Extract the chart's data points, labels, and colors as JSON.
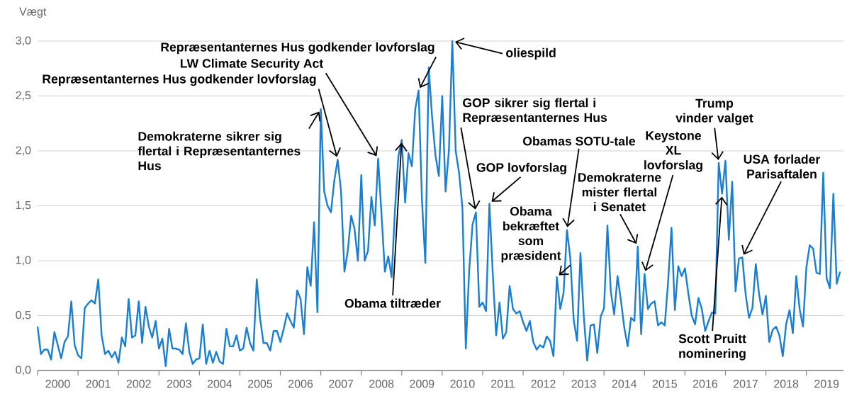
{
  "chart_data": {
    "type": "line",
    "ylabel": "Vægt",
    "color": "#1a7fd4",
    "x": [
      "2000-01",
      "2000-02",
      "2000-03",
      "2000-04",
      "2000-05",
      "2000-06",
      "2000-07",
      "2000-08",
      "2000-09",
      "2000-10",
      "2000-11",
      "2000-12",
      "2001-01",
      "2001-02",
      "2001-03",
      "2001-04",
      "2001-05",
      "2001-06",
      "2001-07",
      "2001-08",
      "2001-09",
      "2001-10",
      "2001-11",
      "2001-12",
      "2002-01",
      "2002-02",
      "2002-03",
      "2002-04",
      "2002-05",
      "2002-06",
      "2002-07",
      "2002-08",
      "2002-09",
      "2002-10",
      "2002-11",
      "2002-12",
      "2003-01",
      "2003-02",
      "2003-03",
      "2003-04",
      "2003-05",
      "2003-06",
      "2003-07",
      "2003-08",
      "2003-09",
      "2003-10",
      "2003-11",
      "2003-12",
      "2004-01",
      "2004-02",
      "2004-03",
      "2004-04",
      "2004-05",
      "2004-06",
      "2004-07",
      "2004-08",
      "2004-09",
      "2004-10",
      "2004-11",
      "2004-12",
      "2005-01",
      "2005-02",
      "2005-03",
      "2005-04",
      "2005-05",
      "2005-06",
      "2005-07",
      "2005-08",
      "2005-09",
      "2005-10",
      "2005-11",
      "2005-12",
      "2006-01",
      "2006-02",
      "2006-03",
      "2006-04",
      "2006-05",
      "2006-06",
      "2006-07",
      "2006-08",
      "2006-09",
      "2006-10",
      "2006-11",
      "2006-12",
      "2007-01",
      "2007-02",
      "2007-03",
      "2007-04",
      "2007-05",
      "2007-06",
      "2007-07",
      "2007-08",
      "2007-09",
      "2007-10",
      "2007-11",
      "2007-12",
      "2008-01",
      "2008-02",
      "2008-03",
      "2008-04",
      "2008-05",
      "2008-06",
      "2008-07",
      "2008-08",
      "2008-09",
      "2008-10",
      "2008-11",
      "2008-12",
      "2009-01",
      "2009-02",
      "2009-03",
      "2009-04",
      "2009-05",
      "2009-06",
      "2009-07",
      "2009-08",
      "2009-09",
      "2009-10",
      "2009-11",
      "2009-12",
      "2010-01",
      "2010-02",
      "2010-03",
      "2010-04",
      "2010-05",
      "2010-06",
      "2010-07",
      "2010-08",
      "2010-09",
      "2010-10",
      "2010-11",
      "2010-12",
      "2011-01",
      "2011-02",
      "2011-03",
      "2011-04",
      "2011-05",
      "2011-06",
      "2011-07",
      "2011-08",
      "2011-09",
      "2011-10",
      "2011-11",
      "2011-12",
      "2012-01",
      "2012-02",
      "2012-03",
      "2012-04",
      "2012-05",
      "2012-06",
      "2012-07",
      "2012-08",
      "2012-09",
      "2012-10",
      "2012-11",
      "2012-12",
      "2013-01",
      "2013-02",
      "2013-03",
      "2013-04",
      "2013-05",
      "2013-06",
      "2013-07",
      "2013-08",
      "2013-09",
      "2013-10",
      "2013-11",
      "2013-12",
      "2014-01",
      "2014-02",
      "2014-03",
      "2014-04",
      "2014-05",
      "2014-06",
      "2014-07",
      "2014-08",
      "2014-09",
      "2014-10",
      "2014-11",
      "2014-12",
      "2015-01",
      "2015-02",
      "2015-03",
      "2015-04",
      "2015-05",
      "2015-06",
      "2015-07",
      "2015-08",
      "2015-09",
      "2015-10",
      "2015-11",
      "2015-12",
      "2016-01",
      "2016-02",
      "2016-03",
      "2016-04",
      "2016-05",
      "2016-06",
      "2016-07",
      "2016-08",
      "2016-09",
      "2016-10",
      "2016-11",
      "2016-12",
      "2017-01",
      "2017-02",
      "2017-03",
      "2017-04",
      "2017-05",
      "2017-06",
      "2017-07",
      "2017-08",
      "2017-09",
      "2017-10",
      "2017-11",
      "2017-12",
      "2018-01",
      "2018-02",
      "2018-03",
      "2018-04",
      "2018-05",
      "2018-06",
      "2018-07",
      "2018-08",
      "2018-09",
      "2018-10",
      "2018-11",
      "2018-12",
      "2019-01",
      "2019-02",
      "2019-03",
      "2019-04",
      "2019-05",
      "2019-06",
      "2019-07",
      "2019-08",
      "2019-09",
      "2019-10",
      "2019-11"
    ],
    "values": [
      0.4,
      0.15,
      0.19,
      0.19,
      0.1,
      0.35,
      0.23,
      0.11,
      0.26,
      0.31,
      0.63,
      0.23,
      0.14,
      0.11,
      0.57,
      0.61,
      0.64,
      0.61,
      0.83,
      0.32,
      0.15,
      0.18,
      0.12,
      0.17,
      0.07,
      0.3,
      0.22,
      0.65,
      0.3,
      0.32,
      0.63,
      0.25,
      0.58,
      0.4,
      0.3,
      0.45,
      0.2,
      0.29,
      0.04,
      0.38,
      0.2,
      0.2,
      0.19,
      0.15,
      0.43,
      0.17,
      0.06,
      0.1,
      0.11,
      0.42,
      0.06,
      0.18,
      0.07,
      0.17,
      0.08,
      0.06,
      0.38,
      0.22,
      0.22,
      0.32,
      0.18,
      0.2,
      0.39,
      0.25,
      0.18,
      0.83,
      0.47,
      0.25,
      0.25,
      0.18,
      0.36,
      0.36,
      0.26,
      0.38,
      0.52,
      0.45,
      0.39,
      0.73,
      0.65,
      0.33,
      0.94,
      0.77,
      1.35,
      0.53,
      2.38,
      1.63,
      1.5,
      1.44,
      1.73,
      1.92,
      1.63,
      0.9,
      1.09,
      1.41,
      1.29,
      1.0,
      1.78,
      1.0,
      1.09,
      1.58,
      1.32,
      1.93,
      1.42,
      0.9,
      1.04,
      0.85,
      1.47,
      1.95,
      2.1,
      1.53,
      1.98,
      1.86,
      2.38,
      2.55,
      1.55,
      0.98,
      2.76,
      2.31,
      1.96,
      1.77,
      2.5,
      1.63,
      2.01,
      3.0,
      2.0,
      1.8,
      1.48,
      0.2,
      0.91,
      1.33,
      1.44,
      0.58,
      0.62,
      0.54,
      1.52,
      0.88,
      0.32,
      0.62,
      0.29,
      0.35,
      0.77,
      0.56,
      0.52,
      0.54,
      0.44,
      0.36,
      0.45,
      0.26,
      0.19,
      0.23,
      0.21,
      0.31,
      0.27,
      0.13,
      0.85,
      0.56,
      0.71,
      1.28,
      1.02,
      0.46,
      0.27,
      1.07,
      0.49,
      0.09,
      0.41,
      0.42,
      0.16,
      0.49,
      0.57,
      1.32,
      0.72,
      0.51,
      0.86,
      0.64,
      0.39,
      0.22,
      0.48,
      0.45,
      1.13,
      0.33,
      0.88,
      0.56,
      0.61,
      0.63,
      0.41,
      0.44,
      0.41,
      0.81,
      1.3,
      0.55,
      0.95,
      0.86,
      0.93,
      0.7,
      0.5,
      0.42,
      0.66,
      0.56,
      0.36,
      0.45,
      0.53,
      0.52,
      1.89,
      1.61,
      1.91,
      1.19,
      1.72,
      0.72,
      1.02,
      1.03,
      0.69,
      0.48,
      0.57,
      0.97,
      0.69,
      0.51,
      0.68,
      0.26,
      0.37,
      0.4,
      0.32,
      0.13,
      0.42,
      0.55,
      0.34,
      0.86,
      0.56,
      0.4,
      0.94,
      1.14,
      1.11,
      0.89,
      0.88,
      1.8,
      0.84,
      0.75,
      1.61,
      0.79,
      0.9
    ],
    "xlim": [
      "2000-01",
      "2019-12"
    ],
    "xticks": [
      {
        "value": "2000-07",
        "label": "2000"
      },
      {
        "value": "2001-07",
        "label": "2001"
      },
      {
        "value": "2002-07",
        "label": "2002"
      },
      {
        "value": "2003-07",
        "label": "2003"
      },
      {
        "value": "2004-07",
        "label": "2004"
      },
      {
        "value": "2005-07",
        "label": "2005"
      },
      {
        "value": "2006-07",
        "label": "2006"
      },
      {
        "value": "2007-07",
        "label": "2007"
      },
      {
        "value": "2008-07",
        "label": "2008"
      },
      {
        "value": "2009-07",
        "label": "2009"
      },
      {
        "value": "2010-07",
        "label": "2010"
      },
      {
        "value": "2011-07",
        "label": "2011"
      },
      {
        "value": "2012-07",
        "label": "2012"
      },
      {
        "value": "2013-07",
        "label": "2013"
      },
      {
        "value": "2014-07",
        "label": "2014"
      },
      {
        "value": "2015-07",
        "label": "2015"
      },
      {
        "value": "2016-07",
        "label": "2016"
      },
      {
        "value": "2017-07",
        "label": "2017"
      },
      {
        "value": "2018-07",
        "label": "2018"
      },
      {
        "value": "2019-07",
        "label": "2019"
      },
      {
        "value": "2000-01",
        "label": null
      },
      {
        "value": "2001-01",
        "label": null
      },
      {
        "value": "2002-01",
        "label": null
      },
      {
        "value": "2003-01",
        "label": null
      },
      {
        "value": "2004-01",
        "label": null
      },
      {
        "value": "2005-01",
        "label": null
      },
      {
        "value": "2006-01",
        "label": null
      },
      {
        "value": "2007-01",
        "label": null
      },
      {
        "value": "2008-01",
        "label": null
      },
      {
        "value": "2009-01",
        "label": null
      },
      {
        "value": "2010-01",
        "label": null
      },
      {
        "value": "2011-01",
        "label": null
      },
      {
        "value": "2012-01",
        "label": null
      },
      {
        "value": "2013-01",
        "label": null
      },
      {
        "value": "2014-01",
        "label": null
      },
      {
        "value": "2015-01",
        "label": null
      },
      {
        "value": "2016-01",
        "label": null
      },
      {
        "value": "2017-01",
        "label": null
      },
      {
        "value": "2018-01",
        "label": null
      },
      {
        "value": "2019-01",
        "label": null
      }
    ],
    "ylim": [
      0,
      3.0
    ],
    "yticks": [
      {
        "value": 0,
        "label": "0,0"
      },
      {
        "value": 0.5,
        "label": "0,5"
      },
      {
        "value": 1.0,
        "label": "1,0"
      },
      {
        "value": 1.5,
        "label": "1,5"
      },
      {
        "value": 2.0,
        "label": "2,0"
      },
      {
        "value": 2.5,
        "label": "2,5"
      },
      {
        "value": 3.0,
        "label": "3,0"
      }
    ],
    "grid": "y",
    "annotations": [
      {
        "text": "Demokraterne sikrer sig flertal i Repræsentanternes Hus",
        "x": "2007-01",
        "y": 2.38
      },
      {
        "text": "Repræsentanternes Hus godkender lovforslag",
        "x": "2007-06",
        "y": 1.92
      },
      {
        "text": "LW Climate Security Act",
        "x": "2008-06",
        "y": 1.93
      },
      {
        "text": "Repræsentanternes Hus godkender lovforslag",
        "x": "2009-06",
        "y": 2.55
      },
      {
        "text": "oliespild",
        "x": "2010-04",
        "y": 3.0
      },
      {
        "text": "GOP sikrer sig flertal i Repræsentanternes Hus",
        "x": "2010-11",
        "y": 1.44
      },
      {
        "text": "GOP lovforslag",
        "x": "2011-03",
        "y": 1.52
      },
      {
        "text": "Obama tiltræder",
        "x": "2009-01",
        "y": 2.1
      },
      {
        "text": "Obama bekræftet som præsident",
        "x": "2012-11",
        "y": 0.85
      },
      {
        "text": "Obamas SOTU-tale",
        "x": "2013-02",
        "y": 1.28
      },
      {
        "text": "Keystone XL lovforslag",
        "x": "2015-01",
        "y": 0.88
      },
      {
        "text": "Demokraterne mister flertal i Senatet",
        "x": "2014-11",
        "y": 1.13
      },
      {
        "text": "Trump vinder valget",
        "x": "2016-11",
        "y": 1.89
      },
      {
        "text": "Scott Pruitt nominering",
        "x": "2016-12",
        "y": 1.61
      },
      {
        "text": "USA forlader Parisaftalen",
        "x": "2017-06",
        "y": 1.03
      }
    ]
  }
}
